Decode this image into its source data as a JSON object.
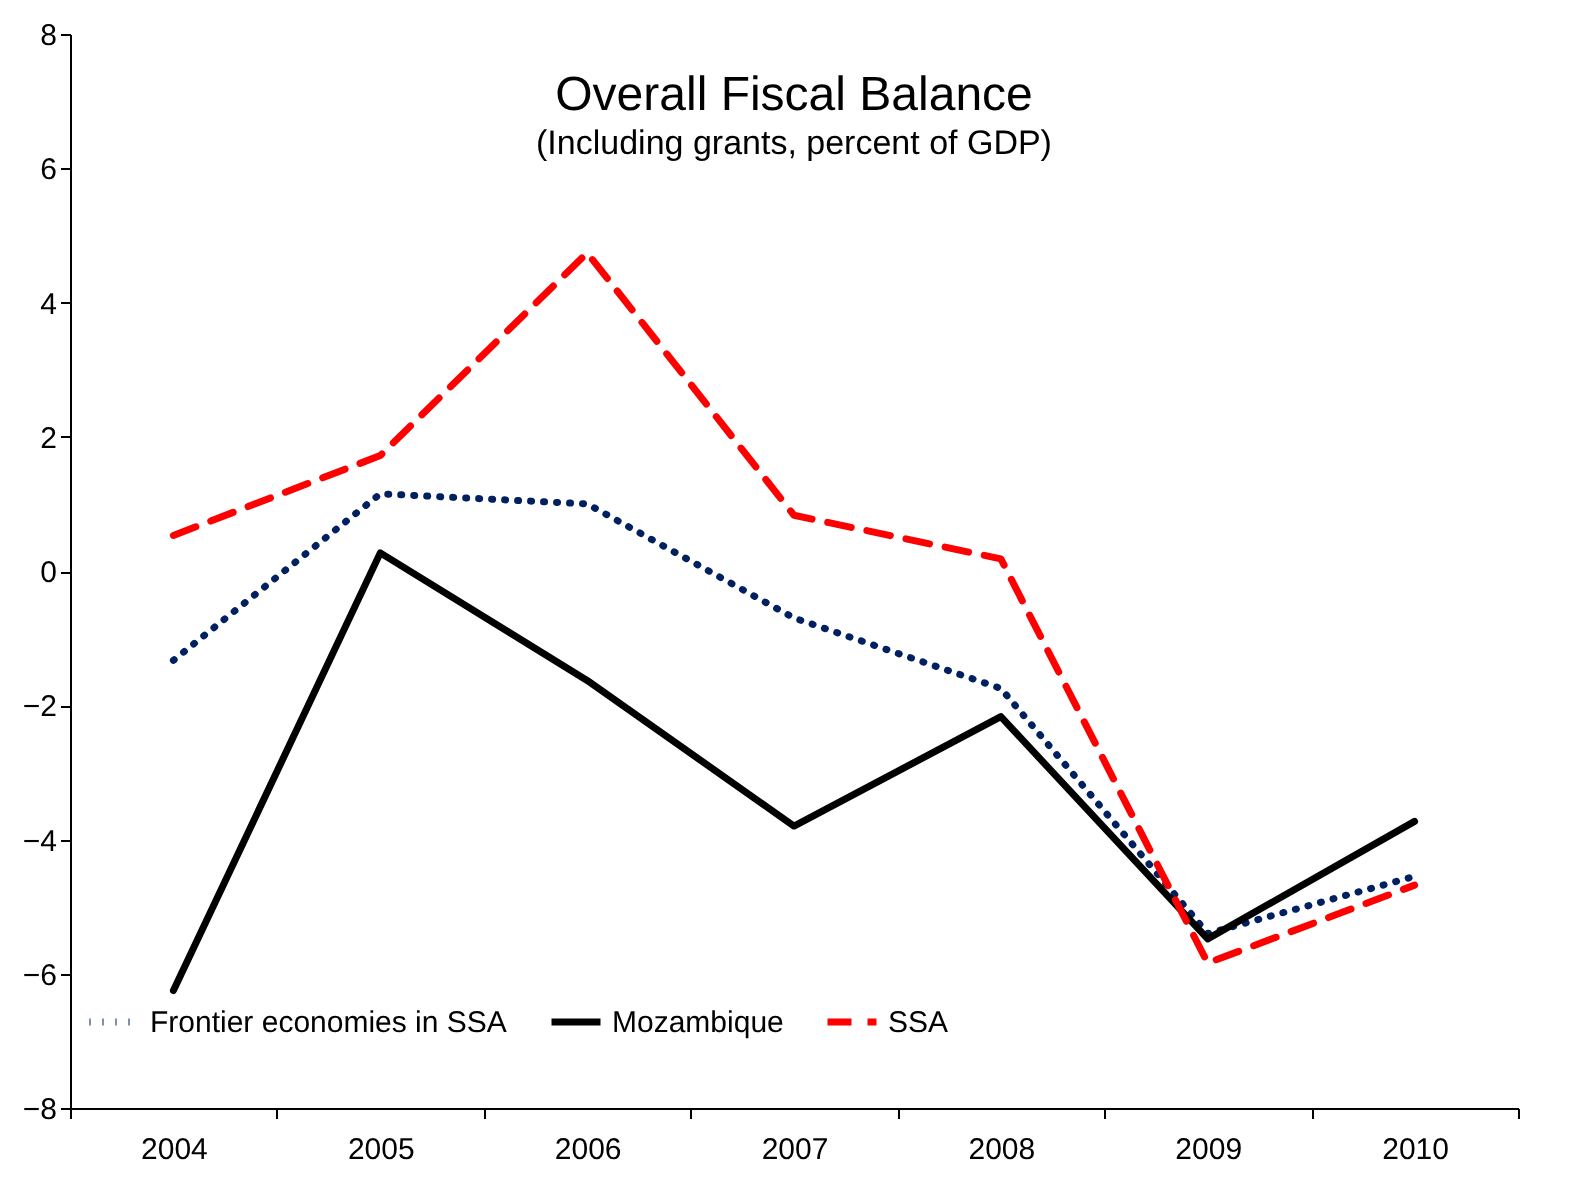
{
  "chart_data": {
    "type": "line",
    "title": "Overall Fiscal Balance",
    "subtitle": "(Including grants, percent of GDP)",
    "categories": [
      "2004",
      "2005",
      "2006",
      "2007",
      "2008",
      "2009",
      "2010"
    ],
    "series": [
      {
        "name": "Frontier economies in SSA",
        "color": "#002060",
        "line_style": "dotted",
        "values": [
          -1.33,
          1.15,
          1.0,
          -0.7,
          -1.75,
          -5.4,
          -4.55
        ]
      },
      {
        "name": "Mozambique",
        "color": "#000000",
        "line_style": "solid",
        "values": [
          -6.25,
          0.27,
          -1.63,
          -3.8,
          -2.17,
          -5.48,
          -3.73
        ]
      },
      {
        "name": "SSA",
        "color": "#ff0000",
        "line_style": "dashed",
        "values": [
          0.53,
          1.72,
          4.74,
          0.83,
          0.18,
          -5.84,
          -4.68
        ]
      }
    ],
    "ylim": [
      -8,
      8
    ],
    "yticks": [
      -8,
      -6,
      -4,
      -2,
      0,
      2,
      4,
      6,
      8
    ],
    "grid": false,
    "legend": "bottom",
    "marker": "none"
  }
}
